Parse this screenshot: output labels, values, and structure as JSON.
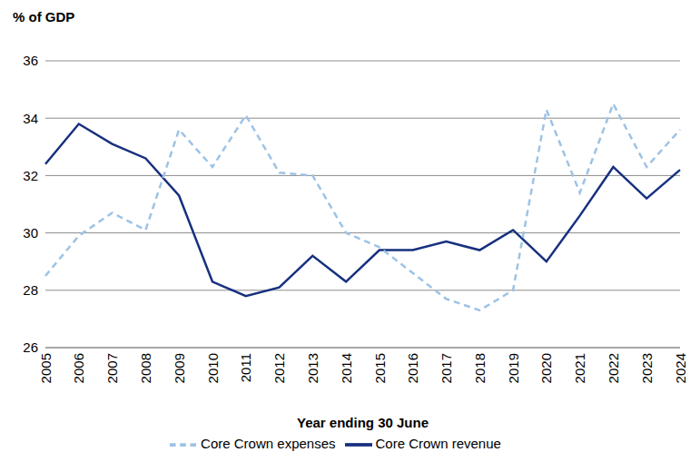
{
  "chart_data": {
    "type": "line",
    "title": "% of GDP",
    "x_label": "Year ending 30 June",
    "categories": [
      "2005",
      "2006",
      "2007",
      "2008",
      "2009",
      "2010",
      "2011",
      "2012",
      "2013",
      "2014",
      "2015",
      "2016",
      "2017",
      "2018",
      "2019",
      "2020",
      "2021",
      "2022",
      "2023",
      "2024"
    ],
    "series": [
      {
        "name": "Core Crown revenue",
        "color": "#17307f",
        "line_style": "solid",
        "values": [
          32.4,
          33.8,
          33.1,
          32.6,
          31.3,
          28.3,
          27.8,
          28.1,
          29.2,
          28.3,
          29.4,
          29.4,
          29.7,
          29.4,
          30.1,
          29.0,
          30.6,
          32.3,
          31.2,
          32.2
        ]
      },
      {
        "name": "Core Crown expenses",
        "color": "#9dc3e6",
        "line_style": "dashed",
        "values": [
          28.5,
          29.9,
          30.7,
          30.1,
          33.6,
          32.3,
          34.1,
          32.1,
          32.0,
          30.0,
          29.5,
          28.6,
          27.7,
          27.3,
          28.0,
          34.3,
          31.4,
          34.5,
          32.3,
          33.6
        ]
      }
    ],
    "ylim": [
      26,
      36
    ],
    "yticks": [
      26,
      28,
      30,
      32,
      34,
      36
    ],
    "grid": true,
    "legend": "bottom"
  }
}
